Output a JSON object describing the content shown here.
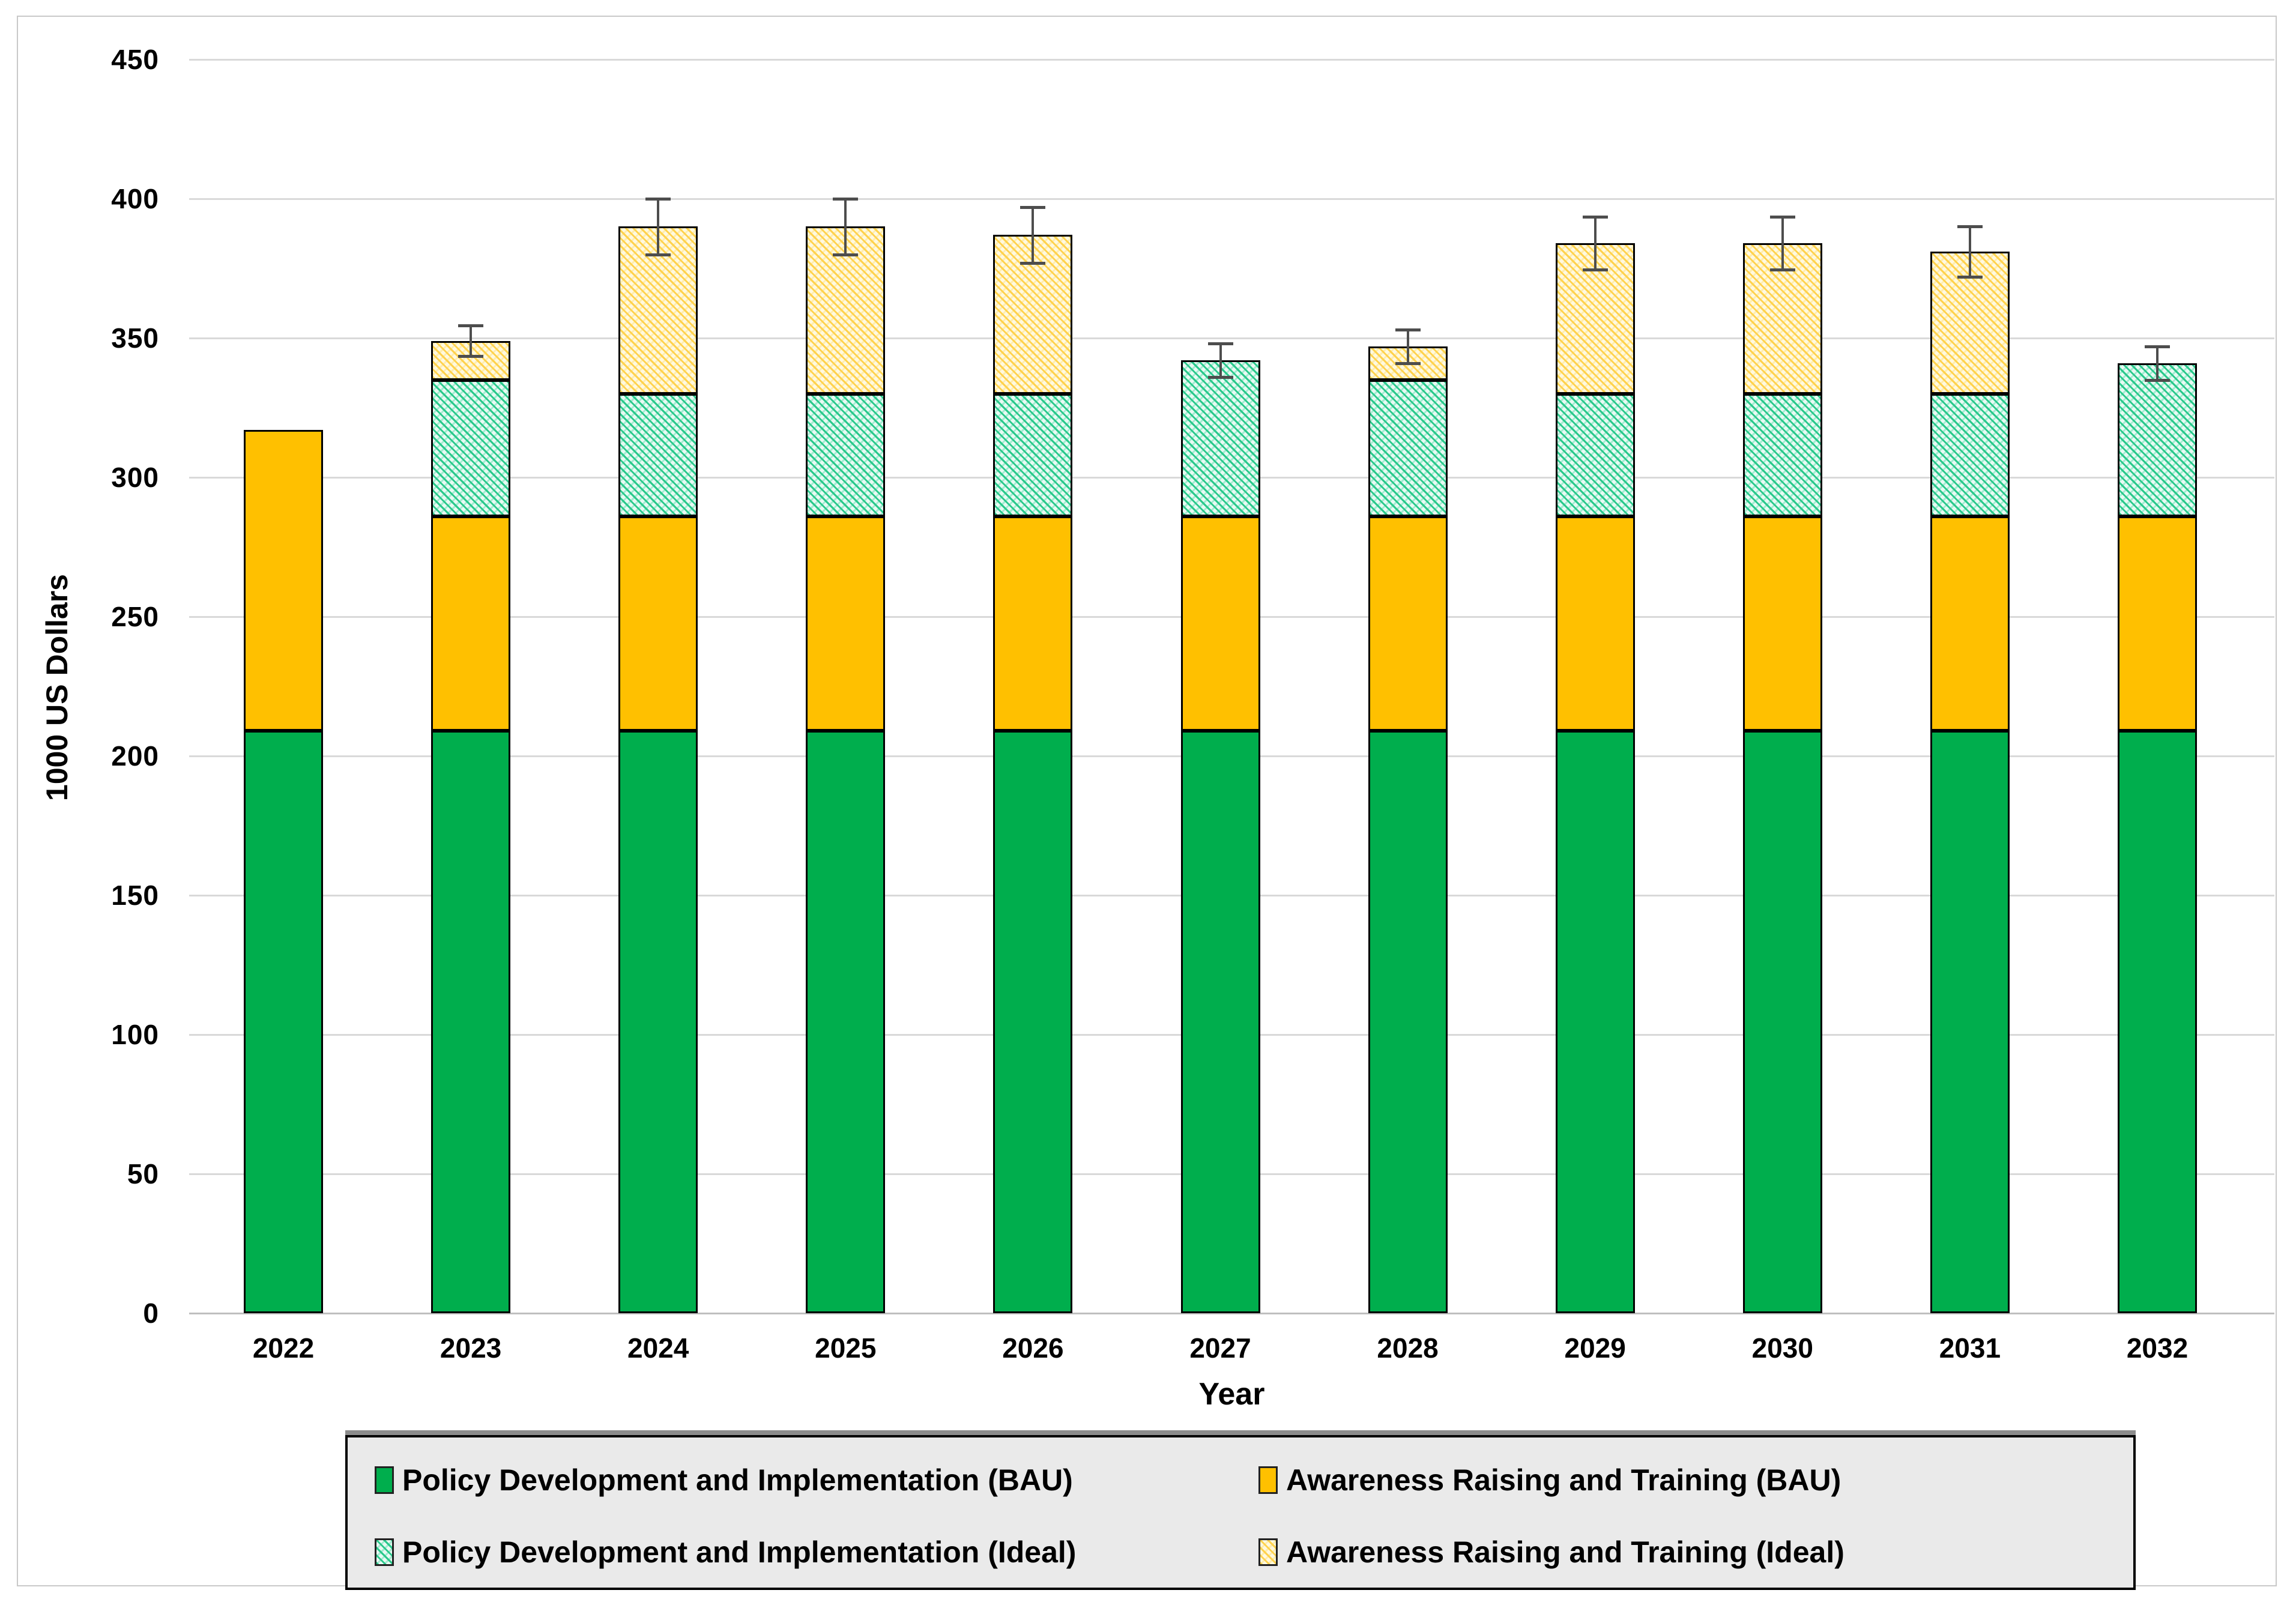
{
  "chart_data": {
    "type": "bar",
    "stacked": true,
    "grid": true,
    "legend_position": "bottom",
    "xlabel": "Year",
    "ylabel": "1000 US Dollars",
    "ylim": [
      0,
      450
    ],
    "ytick_step": 50,
    "categories": [
      "2022",
      "2023",
      "2024",
      "2025",
      "2026",
      "2027",
      "2028",
      "2029",
      "2030",
      "2031",
      "2032"
    ],
    "series": [
      {
        "name": "Policy Development and Implementation (BAU)",
        "slug": "pdi-bau",
        "css": "solid-green",
        "color": "#00AE4D",
        "values": [
          209,
          209,
          209,
          209,
          209,
          209,
          209,
          209,
          209,
          209,
          209
        ]
      },
      {
        "name": "Awareness Raising and Training (BAU)",
        "slug": "art-bau",
        "css": "solid-gold",
        "color": "#FFC000",
        "values": [
          108,
          77,
          77,
          77,
          77,
          77,
          77,
          77,
          77,
          77,
          77
        ]
      },
      {
        "name": "Policy Development and Implementation (Ideal)",
        "slug": "pdi-ideal",
        "css": "hatch-teal",
        "color": "#A5EBD2",
        "values": [
          0,
          49,
          44,
          44,
          44,
          56,
          49,
          44,
          44,
          44,
          55
        ]
      },
      {
        "name": "Awareness Raising and Training (Ideal)",
        "slug": "art-ideal",
        "css": "hatch-yellow",
        "color": "#FFEDB0",
        "values": [
          0,
          14,
          60,
          60,
          57,
          0,
          12,
          54,
          54,
          51,
          0
        ]
      }
    ],
    "totals": [
      317,
      349,
      390,
      390,
      387,
      342,
      347,
      384,
      384,
      381,
      341
    ],
    "error_bars": [
      0,
      5.5,
      10,
      10,
      10,
      6,
      6,
      9.5,
      9.5,
      9,
      6
    ],
    "colors": {
      "grid": "#D9D9D9",
      "axis_line": "#BFBFBF",
      "error_bar": "#4D4D4D",
      "legend_bg": "#EAEAEA",
      "text": "#000000"
    }
  }
}
